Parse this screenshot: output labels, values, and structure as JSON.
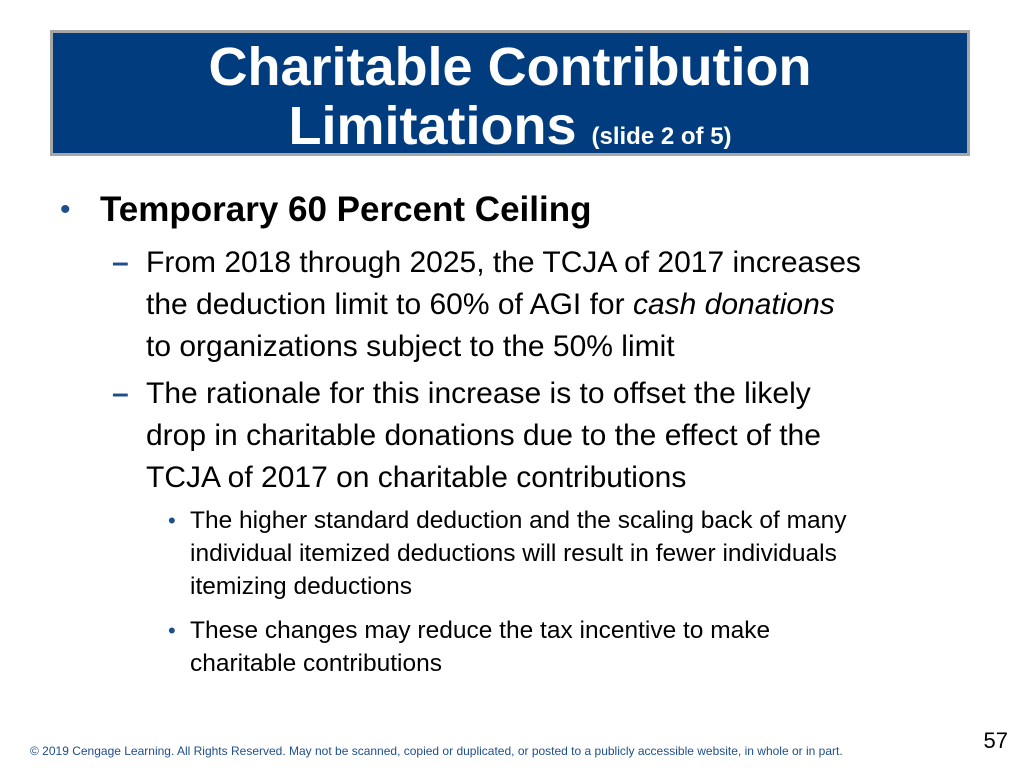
{
  "title": {
    "line1": "Charitable Contribution",
    "line2": "Limitations",
    "sub": "(slide 2 of 5)"
  },
  "bullets": {
    "b1": "Temporary 60 Percent Ceiling",
    "d1_lines": [
      "From 2018 through 2025, the TCJA of 2017 increases",
      "the deduction limit to 60% of AGI for",
      "cash donations",
      "to organizations subject to the 50% limit"
    ],
    "d2_lines": [
      "The rationale for this increase is to offset the likely",
      "drop in charitable donations due to the effect of the",
      "TCJA of 2017 on charitable contributions"
    ],
    "s1_lines": [
      "The higher standard deduction and the scaling back of many",
      "individual itemized deductions will result in fewer individuals",
      "itemizing deductions"
    ],
    "s2_lines": [
      "These changes may reduce the tax incentive to make",
      "charitable contributions"
    ]
  },
  "symbols": {
    "bullet": "•",
    "dash": "–"
  },
  "footer": {
    "copyright": "© 2019 Cengage Learning. All Rights Reserved. May not be scanned, copied or duplicated, or posted to a publicly accessible website, in whole or in part."
  },
  "page_number": "57",
  "colors": {
    "title_bg": "#003c7e",
    "title_border": "#a6a6a6",
    "accent": "#1f4e8c"
  }
}
